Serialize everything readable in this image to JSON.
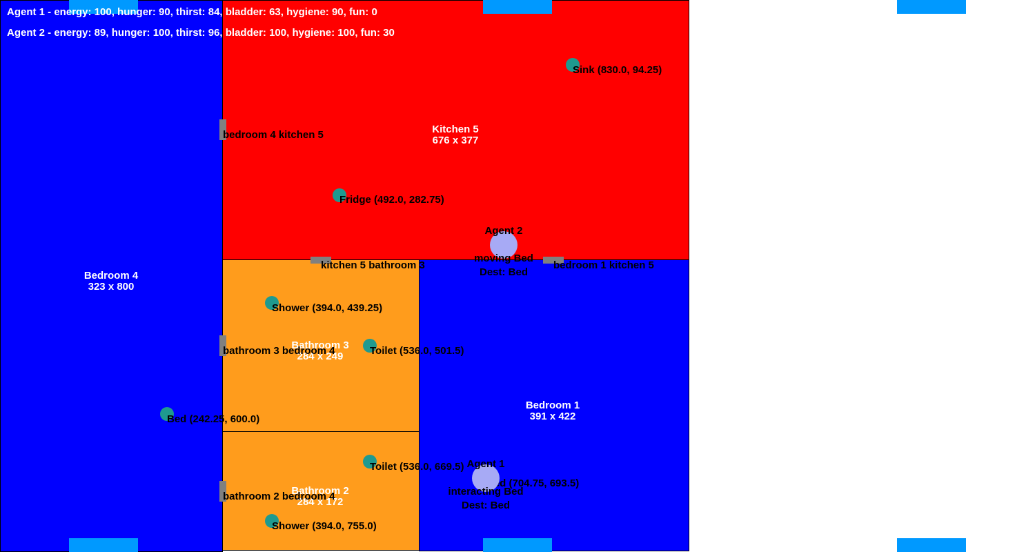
{
  "colors": {
    "bedroom": "#0000ff",
    "kitchen": "#ff0000",
    "bathroom": "#ff9c1c",
    "window": "#0099ff",
    "door": "#808080",
    "object": "#1f9a8f",
    "agent": "#a7aaf5"
  },
  "status": {
    "agent1": "Agent 1 - energy: 100, hunger: 90, thirst: 84, bladder: 63, hygiene: 90, fun: 0",
    "agent2": "Agent 2 - energy: 89, hunger: 100, thirst: 96, bladder: 100, hygiene: 100, fun: 30"
  },
  "rooms": {
    "bedroom4": {
      "name": "Bedroom 4",
      "size": "323 x 800"
    },
    "kitchen5": {
      "name": "Kitchen 5",
      "size": "676 x 377"
    },
    "bathroom3": {
      "name": "Bathroom 3",
      "size": "284 x 249"
    },
    "bathroom2": {
      "name": "Bathroom 2",
      "size": "284 x 172"
    },
    "bedroom1": {
      "name": "Bedroom 1",
      "size": "391 x 422"
    }
  },
  "doors": {
    "bedroom4_kitchen5": "bedroom 4 kitchen 5",
    "kitchen5_bathroom3": "kitchen 5 bathroom 3",
    "bedroom1_kitchen5": "bedroom 1 kitchen 5",
    "bathroom3_bedroom4": "bathroom 3 bedroom 4",
    "bathroom2_bedroom4": "bathroom 2 bedroom 4"
  },
  "objects": {
    "sink": "Sink (830.0, 94.25)",
    "fridge": "Fridge (492.0, 282.75)",
    "shower3": "Shower (394.0, 439.25)",
    "toilet3": "Toilet (536.0, 501.5)",
    "bed4": "Bed (242.25, 600.0)",
    "toilet2": "Toilet (536.0, 669.5)",
    "shower2": "Shower (394.0, 755.0)",
    "bed1": "Bed (704.75, 693.5)"
  },
  "agents": {
    "agent1": {
      "name": "Agent 1",
      "state": "interacting Bed",
      "dest": "Dest: Bed"
    },
    "agent2": {
      "name": "Agent 2",
      "state": "moving Bed",
      "dest": "Dest: Bed"
    }
  }
}
